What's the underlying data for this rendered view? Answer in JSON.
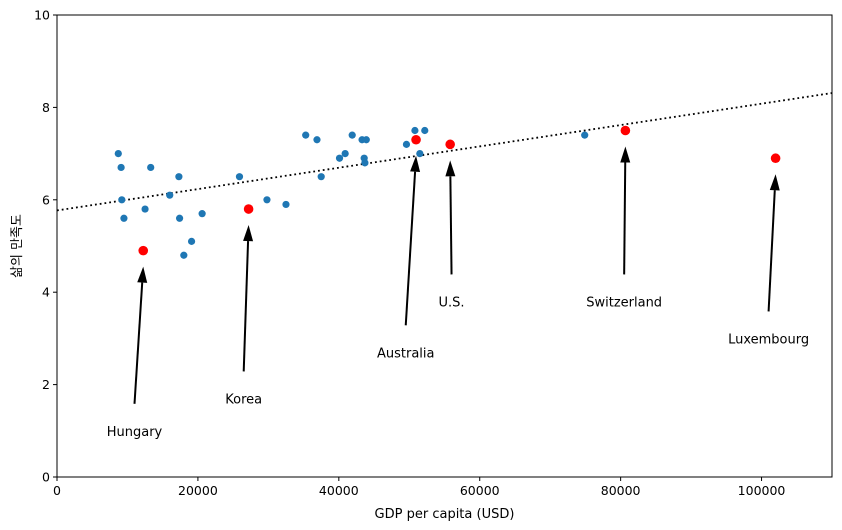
{
  "chart_data": {
    "type": "scatter",
    "title": "",
    "xlabel": "GDP per capita (USD)",
    "ylabel": "삶의 만족도",
    "xlim": [
      0,
      110000
    ],
    "ylim": [
      0,
      10
    ],
    "xticks": [
      0,
      20000,
      40000,
      60000,
      80000,
      100000
    ],
    "xtick_labels": [
      "0",
      "20000",
      "40000",
      "60000",
      "80000",
      "100000"
    ],
    "yticks": [
      0,
      2,
      4,
      6,
      8,
      10
    ],
    "ytick_labels": [
      "0",
      "2",
      "4",
      "6",
      "8",
      "10"
    ],
    "grid": false,
    "series": [
      {
        "color": "#1f77b4",
        "points": [
          [
            8700,
            7.0
          ],
          [
            9100,
            6.7
          ],
          [
            9200,
            6.0
          ],
          [
            9500,
            5.6
          ],
          [
            12500,
            5.8
          ],
          [
            13300,
            6.7
          ],
          [
            16000,
            6.1
          ],
          [
            17300,
            6.5
          ],
          [
            17400,
            5.6
          ],
          [
            18000,
            4.8
          ],
          [
            19100,
            5.1
          ],
          [
            20600,
            5.7
          ],
          [
            25900,
            6.5
          ],
          [
            29800,
            6.0
          ],
          [
            32500,
            5.9
          ],
          [
            35300,
            7.4
          ],
          [
            36900,
            7.3
          ],
          [
            37500,
            6.5
          ],
          [
            40100,
            6.9
          ],
          [
            40900,
            7.0
          ],
          [
            41900,
            7.4
          ],
          [
            43300,
            7.3
          ],
          [
            43600,
            6.9
          ],
          [
            43700,
            6.8
          ],
          [
            43900,
            7.3
          ],
          [
            49600,
            7.2
          ],
          [
            50800,
            7.5
          ],
          [
            51500,
            7.0
          ],
          [
            52200,
            7.5
          ],
          [
            74900,
            7.4
          ]
        ]
      },
      {
        "color": "#ff0000",
        "points": [
          [
            12240,
            4.9
          ],
          [
            27195,
            5.8
          ],
          [
            50962,
            7.3
          ],
          [
            55805,
            7.2
          ],
          [
            80675,
            7.5
          ],
          [
            101994,
            6.9
          ]
        ]
      }
    ],
    "trend_line": {
      "style": "dotted",
      "color": "#000000",
      "intercept": 5.77,
      "slope": 2.31e-05
    },
    "annotations": [
      {
        "label": "Hungary",
        "x": 12240,
        "y": 4.9,
        "text_x": 11000,
        "text_y": 1.0
      },
      {
        "label": "Korea",
        "x": 27195,
        "y": 5.8,
        "text_x": 26500,
        "text_y": 1.7
      },
      {
        "label": "Australia",
        "x": 50962,
        "y": 7.3,
        "text_x": 49500,
        "text_y": 2.7
      },
      {
        "label": "U.S.",
        "x": 55805,
        "y": 7.2,
        "text_x": 56000,
        "text_y": 3.8
      },
      {
        "label": "Switzerland",
        "x": 80675,
        "y": 7.5,
        "text_x": 80500,
        "text_y": 3.8
      },
      {
        "label": "Luxembourg",
        "x": 101994,
        "y": 6.9,
        "text_x": 101000,
        "text_y": 3.0
      }
    ]
  }
}
